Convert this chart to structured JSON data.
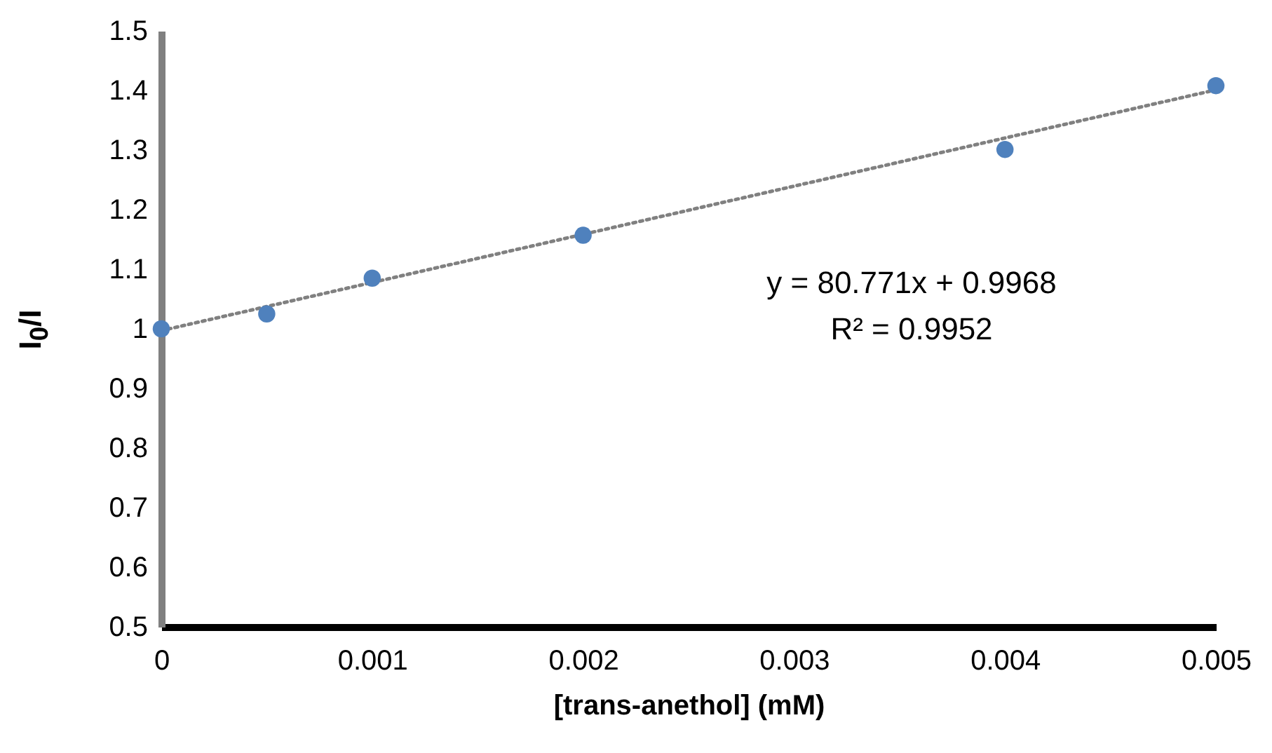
{
  "chart_data": {
    "type": "scatter",
    "xlabel": "[trans-anethol] (mM)",
    "ylabel": "I$_{0}$/I",
    "x": [
      0,
      0.0005,
      0.001,
      0.002,
      0.004,
      0.005
    ],
    "series": [
      {
        "color": "#4f81bd",
        "marker": "circle",
        "values": [
          1.0,
          1.025,
          1.085,
          1.157,
          1.301,
          1.408
        ]
      },
      {
        "type": "line",
        "color": "#808080",
        "line_style": "dotted",
        "x": [
          0,
          0.005
        ],
        "values": [
          0.997,
          1.401
        ]
      }
    ],
    "annotations": [
      "y = 80.771x + 0.9968",
      "R² = 0.9952"
    ],
    "xlim": [
      0,
      0.005
    ],
    "xticks": [
      0,
      0.001,
      0.002,
      0.003,
      0.004,
      0.005
    ],
    "ylim": [
      0.5,
      1.5
    ],
    "yticks": [
      0.5,
      0.6,
      0.7,
      0.8,
      0.9,
      1,
      1.1,
      1.2,
      1.3,
      1.4,
      1.5
    ],
    "grid": false
  }
}
